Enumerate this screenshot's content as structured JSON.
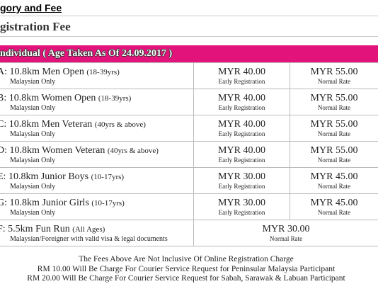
{
  "header": {
    "title": "gory and Fee",
    "subtitle": "gistration Fee"
  },
  "table": {
    "heading": "ndividual ( Age Taken As Of 24.09.2017 )",
    "rows": [
      {
        "name": "A: 10.8km Men Open",
        "age": "(18-39yrs)",
        "note": "Malaysian Only",
        "early": "MYR 40.00",
        "early_label": "Early Registration",
        "normal": "MYR 55.00",
        "normal_label": "Normal Rate"
      },
      {
        "name": "B: 10.8km Women Open",
        "age": "(18-39yrs)",
        "note": "Malaysian Only",
        "early": "MYR 40.00",
        "early_label": "Early Registration",
        "normal": "MYR 55.00",
        "normal_label": "Normal Rate"
      },
      {
        "name": "C: 10.8km Men Veteran",
        "age": "(40yrs & above)",
        "note": "Malaysian Only",
        "early": "MYR 40.00",
        "early_label": "Early Registration",
        "normal": "MYR 55.00",
        "normal_label": "Normal Rate"
      },
      {
        "name": "D: 10.8km Women Veteran",
        "age": "(40yrs & above)",
        "note": "Malaysian Only",
        "early": "MYR 40.00",
        "early_label": "Early Registration",
        "normal": "MYR 55.00",
        "normal_label": "Normal Rate"
      },
      {
        "name": "E:  10.8km Junior Boys",
        "age": "(10-17yrs)",
        "note": "Malaysian Only",
        "early": "MYR 30.00",
        "early_label": "Early Registration",
        "normal": "MYR 45.00",
        "normal_label": "Normal Rate"
      },
      {
        "name": "G: 10.8km Junior Girls",
        "age": "(10-17yrs)",
        "note": "Malaysian Only",
        "early": "MYR 30.00",
        "early_label": "Early Registration",
        "normal": "MYR 45.00",
        "normal_label": "Normal Rate"
      },
      {
        "name": "F:  5.5km Fun Run",
        "age": "(All Ages)",
        "note": "Malaysian/Foreigner with valid visa & legal documents",
        "fee": "MYR 30.00",
        "fee_label": "Normal Rate"
      }
    ]
  },
  "footer": [
    "The Fees Above Are Not Inclusive Of Online Registration Charge",
    "RM 10.00 Will Be Charge For Courier Service Request for Peninsular Malaysia Participant",
    "RM 20.00 Will Be Charge For Courier Service Request for Sabah, Sarawak & Labuan Participant"
  ]
}
